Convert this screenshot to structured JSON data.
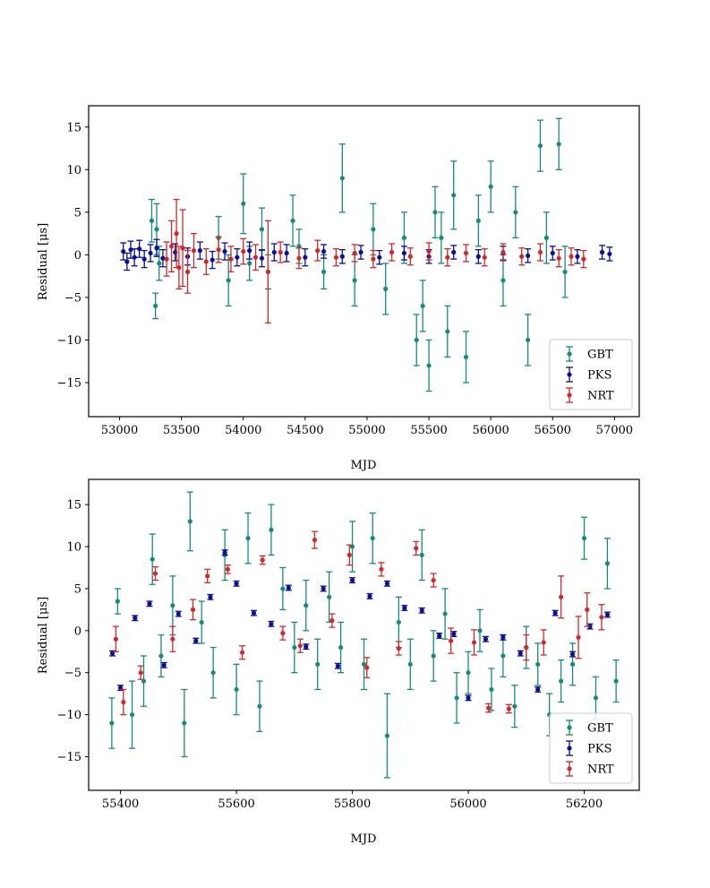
{
  "chart_data": [
    {
      "type": "scatter",
      "title": "",
      "xlabel": "MJD",
      "ylabel": "Residual [μs]",
      "xlim": [
        52750,
        57200
      ],
      "ylim": [
        -19,
        17.5
      ],
      "xticks": [
        53000,
        53500,
        54000,
        54500,
        55000,
        55500,
        56000,
        56500,
        57000
      ],
      "yticks": [
        -15,
        -10,
        -5,
        0,
        5,
        10,
        15
      ],
      "xtick_labels": [
        "53000",
        "53500",
        "54000",
        "54500",
        "55000",
        "55500",
        "56000",
        "56500",
        "57000"
      ],
      "ytick_labels": [
        "−15",
        "−10",
        "−5",
        "0",
        "5",
        "10",
        "15"
      ],
      "legend": {
        "position": "lower-right",
        "entries": [
          "GBT",
          "PKS",
          "NRT"
        ]
      },
      "series": [
        {
          "name": "GBT",
          "color": "#178a7b",
          "x": [
            53260,
            53290,
            53300,
            53320,
            53800,
            53880,
            54000,
            54050,
            54150,
            54200,
            54400,
            54450,
            54650,
            54800,
            54900,
            55050,
            55150,
            55300,
            55400,
            55450,
            55500,
            55550,
            55600,
            55650,
            55700,
            55800,
            55900,
            56000,
            56100,
            56200,
            56300,
            56400,
            56450,
            56550,
            56600
          ],
          "y": [
            4,
            -6,
            3,
            -1,
            2,
            -3,
            6,
            -1,
            3,
            -2,
            4,
            1,
            -2,
            9,
            -3,
            3,
            -4,
            2,
            -10,
            -6,
            -13,
            5,
            2,
            -9,
            7,
            -12,
            4,
            8,
            -3,
            5,
            -10,
            12.8,
            2,
            13,
            -2
          ],
          "err": [
            2.5,
            1.5,
            3,
            2,
            2.5,
            3,
            3.5,
            2,
            2.5,
            2,
            3,
            2,
            2,
            4,
            3,
            3,
            3,
            3,
            3,
            3,
            3,
            3,
            3,
            3,
            4,
            3,
            3,
            3,
            3,
            3,
            3,
            3,
            3,
            3,
            3
          ]
        },
        {
          "name": "PKS",
          "color": "#0b0f94",
          "x": [
            53030,
            53060,
            53090,
            53120,
            53160,
            53200,
            53250,
            53300,
            53350,
            53450,
            53550,
            53650,
            53750,
            53850,
            53950,
            54050,
            54150,
            54250,
            54350,
            54500,
            54650,
            54800,
            54950,
            55100,
            55300,
            55500,
            55700,
            55900,
            56100,
            56300,
            56500,
            56700,
            56900,
            56960
          ],
          "y": [
            0.4,
            -0.8,
            0.6,
            -0.3,
            0.7,
            -0.5,
            0.2,
            0.8,
            -0.4,
            0.3,
            -0.2,
            0.5,
            -0.6,
            0.4,
            -0.3,
            0.5,
            -0.4,
            0.3,
            0.2,
            -0.3,
            0.4,
            -0.2,
            0.3,
            -0.3,
            0.2,
            -0.2,
            0.3,
            -0.2,
            0.2,
            -0.1,
            0.2,
            -0.2,
            0.3,
            0.1
          ],
          "err": [
            1,
            1,
            1,
            1,
            1,
            1,
            1,
            1,
            1,
            1,
            1,
            1,
            1,
            1,
            1,
            1,
            1,
            1,
            1,
            1,
            0.8,
            0.8,
            0.8,
            0.8,
            0.8,
            0.8,
            0.8,
            0.8,
            0.8,
            0.8,
            0.8,
            0.8,
            0.8,
            0.8
          ]
        },
        {
          "name": "NRT",
          "color": "#cc2a2c",
          "x": [
            53380,
            53420,
            53460,
            53480,
            53510,
            53550,
            53600,
            53700,
            53800,
            53900,
            54000,
            54100,
            54200,
            54300,
            54450,
            54600,
            54750,
            54900,
            55050,
            55200,
            55350,
            55500,
            55650,
            55800,
            55950,
            56100,
            56250,
            56400,
            56550,
            56650,
            56750
          ],
          "y": [
            -0.5,
            1,
            2.5,
            -1.5,
            0.8,
            -2,
            0.5,
            -0.8,
            0.6,
            -0.5,
            0.4,
            -0.3,
            -2,
            0.3,
            -0.4,
            0.5,
            -0.3,
            0.2,
            -0.5,
            0.3,
            -0.2,
            0.4,
            -0.3,
            0.2,
            -0.3,
            0.3,
            -0.2,
            0.3,
            -0.4,
            -0.2,
            -0.5
          ],
          "err": [
            2,
            3,
            4,
            2.5,
            4.5,
            2.5,
            2,
            1.5,
            1.5,
            1.5,
            1.5,
            1.5,
            6,
            1.2,
            1.2,
            1.2,
            1,
            1,
            1,
            1,
            1,
            1,
            1,
            1,
            1,
            1,
            1,
            1,
            1,
            1,
            1
          ]
        }
      ]
    },
    {
      "type": "scatter",
      "title": "",
      "xlabel": "MJD",
      "ylabel": "Residual [μs]",
      "xlim": [
        55345,
        56295
      ],
      "ylim": [
        -19,
        18
      ],
      "xticks": [
        55400,
        55600,
        55800,
        56000,
        56200
      ],
      "yticks": [
        -15,
        -10,
        -5,
        0,
        5,
        10,
        15
      ],
      "xtick_labels": [
        "55400",
        "55600",
        "55800",
        "56000",
        "56200"
      ],
      "ytick_labels": [
        "−15",
        "−10",
        "−5",
        "0",
        "5",
        "10",
        "15"
      ],
      "legend": {
        "position": "lower-right",
        "entries": [
          "GBT",
          "PKS",
          "NRT"
        ]
      },
      "series": [
        {
          "name": "GBT",
          "color": "#178a7b",
          "x": [
            55385,
            55395,
            55420,
            55440,
            55455,
            55470,
            55490,
            55510,
            55520,
            55540,
            55560,
            55580,
            55600,
            55620,
            55640,
            55660,
            55680,
            55700,
            55720,
            55740,
            55760,
            55780,
            55800,
            55820,
            55835,
            55860,
            55880,
            55900,
            55920,
            55940,
            55960,
            55980,
            56000,
            56020,
            56040,
            56060,
            56080,
            56100,
            56120,
            56140,
            56160,
            56180,
            56200,
            56220,
            56240,
            56255
          ],
          "y": [
            -11,
            3.5,
            -10,
            -6,
            8.5,
            -3,
            3,
            -11,
            13,
            1,
            -5,
            9,
            -7,
            11,
            -9,
            12,
            5,
            -2,
            3,
            -4,
            4,
            -2,
            10,
            -4,
            11,
            -12.5,
            1,
            -4,
            9,
            -3,
            2,
            -8,
            -5,
            0,
            -7,
            -3,
            -9,
            -2,
            -4,
            -10,
            -6,
            -4,
            11,
            -8,
            8,
            -6
          ],
          "err": [
            3,
            1.5,
            4,
            3,
            3,
            2.5,
            3.5,
            4,
            3.5,
            2.5,
            3,
            3,
            3,
            3,
            3,
            3,
            2.5,
            3,
            3,
            3,
            3,
            3,
            3,
            3,
            3,
            5,
            3,
            3,
            3,
            3,
            3,
            3,
            2.5,
            2.5,
            2.5,
            2.5,
            2.5,
            2.5,
            2.5,
            2.5,
            2.5,
            2.5,
            2.5,
            2.5,
            3,
            2.5
          ]
        },
        {
          "name": "PKS",
          "color": "#0b0f94",
          "x": [
            55386,
            55400,
            55425,
            55450,
            55475,
            55500,
            55530,
            55555,
            55580,
            55600,
            55630,
            55660,
            55690,
            55720,
            55750,
            55775,
            55800,
            55830,
            55860,
            55890,
            55920,
            55950,
            55975,
            56000,
            56030,
            56060,
            56090,
            56120,
            56150,
            56180,
            56210,
            56240
          ],
          "y": [
            -2.7,
            -6.8,
            1.5,
            3.2,
            -4.1,
            2.0,
            -1.2,
            4.0,
            9.3,
            5.6,
            2.1,
            0.8,
            5.1,
            -1.9,
            5.0,
            -4.2,
            6.0,
            4.1,
            5.6,
            2.7,
            2.4,
            -0.6,
            -0.4,
            -8.0,
            -1.0,
            -0.8,
            -2.7,
            -7.0,
            2.1,
            -2.8,
            0.5,
            1.9
          ],
          "err": [
            0.3,
            0.3,
            0.3,
            0.3,
            0.3,
            0.3,
            0.3,
            0.3,
            0.3,
            0.3,
            0.3,
            0.3,
            0.3,
            0.3,
            0.3,
            0.3,
            0.3,
            0.3,
            0.3,
            0.3,
            0.3,
            0.3,
            0.3,
            0.3,
            0.3,
            0.3,
            0.3,
            0.3,
            0.3,
            0.3,
            0.3,
            0.3
          ]
        },
        {
          "name": "NRT",
          "color": "#cc2a2c",
          "x": [
            55392,
            55405,
            55435,
            55460,
            55490,
            55525,
            55550,
            55585,
            55610,
            55645,
            55680,
            55710,
            55735,
            55765,
            55795,
            55825,
            55850,
            55880,
            55910,
            55940,
            55970,
            56010,
            56035,
            56070,
            56100,
            56130,
            56160,
            56190,
            56205,
            56230
          ],
          "y": [
            -1.0,
            -8.5,
            -5.0,
            6.8,
            -1.0,
            2.5,
            6.5,
            7.3,
            -2.6,
            8.4,
            -0.3,
            -1.8,
            10.8,
            1.2,
            9.0,
            -4.4,
            7.3,
            -2.1,
            9.8,
            6.0,
            -1.2,
            -1.4,
            -9.2,
            -9.3,
            -2.0,
            -1.4,
            4.0,
            -0.8,
            2.5,
            1.6
          ],
          "err": [
            1.5,
            1.5,
            0.8,
            0.8,
            1.5,
            1.2,
            0.8,
            0.5,
            0.8,
            0.5,
            0.8,
            0.8,
            1.0,
            0.8,
            1.2,
            1.2,
            0.8,
            0.8,
            0.8,
            0.8,
            1.5,
            1.5,
            0.5,
            0.5,
            1.5,
            1.5,
            2.5,
            2.5,
            2.0,
            1.5
          ]
        }
      ]
    }
  ]
}
